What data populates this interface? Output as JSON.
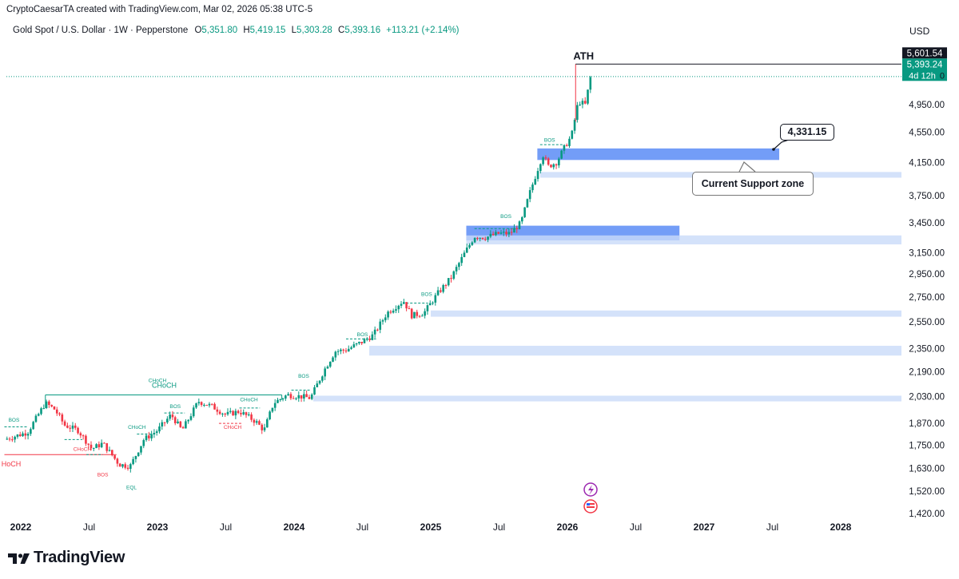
{
  "header": {
    "credit": "CryptoCaesarTA created with TradingView.com, Mar 02, 2026 05:38 UTC-5",
    "symbol": "Gold Spot / U.S. Dollar · 1W · Pepperstone",
    "open_label": "O",
    "open": "5,351.80",
    "high_label": "H",
    "high": "5,419.15",
    "low_label": "L",
    "low": "5,303.28",
    "close_label": "C",
    "close": "5,393.16",
    "change": "+113.21 (+2.14%)",
    "currency": "USD"
  },
  "colors": {
    "up": "#089981",
    "down": "#f23645",
    "zone": "#2962ff",
    "structure_green": "#089981",
    "structure_red": "#f23645",
    "text": "#131722"
  },
  "price_tags": {
    "ath": "5,601.54",
    "last": "5,393.24",
    "countdown": "4d 12h",
    "tail": "0"
  },
  "annotations": {
    "ath_label": "ATH",
    "support_value": "4,331.15",
    "support_label": "Current Support zone"
  },
  "brand": {
    "name": "TradingView"
  },
  "chart_data": {
    "type": "candlestick",
    "title": "Gold Spot / U.S. Dollar · 1W · Pepperstone",
    "y_scale": "log",
    "y_ticks": [
      {
        "value": 4950,
        "label": "4,950.00"
      },
      {
        "value": 4550,
        "label": "4,550.00"
      },
      {
        "value": 4150,
        "label": "4,150.00"
      },
      {
        "value": 3750,
        "label": "3,750.00"
      },
      {
        "value": 3450,
        "label": "3,450.00"
      },
      {
        "value": 3150,
        "label": "3,150.00"
      },
      {
        "value": 2950,
        "label": "2,950.00"
      },
      {
        "value": 2750,
        "label": "2,750.00"
      },
      {
        "value": 2550,
        "label": "2,550.00"
      },
      {
        "value": 2350,
        "label": "2,350.00"
      },
      {
        "value": 2190,
        "label": "2,190.00"
      },
      {
        "value": 2030,
        "label": "2,030.00"
      },
      {
        "value": 1870,
        "label": "1,870.00"
      },
      {
        "value": 1750,
        "label": "1,750.00"
      },
      {
        "value": 1630,
        "label": "1,630.00"
      },
      {
        "value": 1520,
        "label": "1,520.00"
      },
      {
        "value": 1420,
        "label": "1,420.00"
      }
    ],
    "x_ticks": [
      {
        "t": 2022.0,
        "label": "2022",
        "bold": true
      },
      {
        "t": 2022.5,
        "label": "Jul",
        "bold": false
      },
      {
        "t": 2023.0,
        "label": "2023",
        "bold": true
      },
      {
        "t": 2023.5,
        "label": "Jul",
        "bold": false
      },
      {
        "t": 2024.0,
        "label": "2024",
        "bold": true
      },
      {
        "t": 2024.5,
        "label": "Jul",
        "bold": false
      },
      {
        "t": 2025.0,
        "label": "2025",
        "bold": true
      },
      {
        "t": 2025.5,
        "label": "Jul",
        "bold": false
      },
      {
        "t": 2026.0,
        "label": "2026",
        "bold": true
      },
      {
        "t": 2026.5,
        "label": "Jul",
        "bold": false
      },
      {
        "t": 2027.0,
        "label": "2027",
        "bold": true
      },
      {
        "t": 2027.5,
        "label": "Jul",
        "bold": false
      },
      {
        "t": 2028.0,
        "label": "2028",
        "bold": true
      }
    ],
    "price_path": [
      [
        2021.88,
        1780
      ],
      [
        2022.05,
        1820
      ],
      [
        2022.18,
        1990
      ],
      [
        2022.25,
        1950
      ],
      [
        2022.32,
        1860
      ],
      [
        2022.42,
        1830
      ],
      [
        2022.52,
        1730
      ],
      [
        2022.6,
        1760
      ],
      [
        2022.72,
        1650
      ],
      [
        2022.8,
        1640
      ],
      [
        2022.9,
        1780
      ],
      [
        2023.0,
        1830
      ],
      [
        2023.1,
        1920
      ],
      [
        2023.18,
        1830
      ],
      [
        2023.3,
        2000
      ],
      [
        2023.4,
        1970
      ],
      [
        2023.5,
        1920
      ],
      [
        2023.6,
        1940
      ],
      [
        2023.72,
        1880
      ],
      [
        2023.78,
        1830
      ],
      [
        2023.85,
        1990
      ],
      [
        2023.95,
        2040
      ],
      [
        2024.05,
        2030
      ],
      [
        2024.12,
        2020
      ],
      [
        2024.22,
        2200
      ],
      [
        2024.3,
        2330
      ],
      [
        2024.38,
        2340
      ],
      [
        2024.5,
        2400
      ],
      [
        2024.58,
        2450
      ],
      [
        2024.68,
        2620
      ],
      [
        2024.8,
        2720
      ],
      [
        2024.86,
        2600
      ],
      [
        2024.95,
        2620
      ],
      [
        2025.05,
        2780
      ],
      [
        2025.15,
        2920
      ],
      [
        2025.25,
        3150
      ],
      [
        2025.32,
        3310
      ],
      [
        2025.4,
        3300
      ],
      [
        2025.5,
        3340
      ],
      [
        2025.58,
        3340
      ],
      [
        2025.66,
        3450
      ],
      [
        2025.72,
        3760
      ],
      [
        2025.78,
        4050
      ],
      [
        2025.82,
        4250
      ],
      [
        2025.86,
        4100
      ],
      [
        2025.92,
        4150
      ],
      [
        2025.98,
        4350
      ],
      [
        2026.03,
        4500
      ],
      [
        2026.08,
        5000
      ],
      [
        2026.13,
        4950
      ],
      [
        2026.17,
        5393
      ]
    ],
    "zones": [
      {
        "t0": 2025.78,
        "t1": 2027.55,
        "low": 4180,
        "high": 4330,
        "strength": "strong"
      },
      {
        "t0": 2025.8,
        "t1": 2028.45,
        "low": 3960,
        "high": 4030,
        "strength": "light"
      },
      {
        "t0": 2025.26,
        "t1": 2026.82,
        "low": 3270,
        "high": 3420,
        "strength": "strong"
      },
      {
        "t0": 2025.26,
        "t1": 2028.45,
        "low": 3230,
        "high": 3320,
        "strength": "light"
      },
      {
        "t0": 2025.0,
        "t1": 2028.45,
        "low": 2590,
        "high": 2640,
        "strength": "light"
      },
      {
        "t0": 2024.55,
        "t1": 2028.45,
        "low": 2300,
        "high": 2370,
        "strength": "light"
      },
      {
        "t0": 2024.14,
        "t1": 2028.45,
        "low": 2000,
        "high": 2035,
        "strength": "light"
      }
    ],
    "ath": {
      "value": 5601.54,
      "t0": 2026.06,
      "label": "ATH"
    },
    "last_price": 5393.24,
    "structure_labels": [
      {
        "text": "BOS",
        "t": 2021.95,
        "price": 1880,
        "color": "green"
      },
      {
        "text": "CHoCH",
        "t": 2022.45,
        "price": 1720,
        "color": "red"
      },
      {
        "text": "BOS",
        "t": 2022.6,
        "price": 1590,
        "color": "red"
      },
      {
        "text": "CHoCH",
        "t": 2022.85,
        "price": 1840,
        "color": "green"
      },
      {
        "text": "EQL",
        "t": 2022.81,
        "price": 1530,
        "color": "green"
      },
      {
        "text": "CHoCH",
        "t": 2023.0,
        "price": 2120,
        "color": "green"
      },
      {
        "text": "BOS",
        "t": 2023.13,
        "price": 1960,
        "color": "green"
      },
      {
        "text": "CHoCH",
        "t": 2023.55,
        "price": 1840,
        "color": "red"
      },
      {
        "text": "CHoCH",
        "t": 2023.67,
        "price": 2000,
        "color": "green"
      },
      {
        "text": "BOS",
        "t": 2024.07,
        "price": 2150,
        "color": "green"
      },
      {
        "text": "BOS",
        "t": 2024.5,
        "price": 2440,
        "color": "green"
      },
      {
        "text": "BOS",
        "t": 2024.97,
        "price": 2760,
        "color": "green"
      },
      {
        "text": "BOS",
        "t": 2025.55,
        "price": 3500,
        "color": "green"
      },
      {
        "text": "BOS",
        "t": 2025.87,
        "price": 4420,
        "color": "green"
      },
      {
        "text": "HoCH",
        "t": 2021.93,
        "price": 1640,
        "color": "red"
      }
    ],
    "structure_lines": [
      {
        "t0": 2022.18,
        "t1": 2023.91,
        "price": 2040,
        "color": "green",
        "dash": false
      },
      {
        "t0": 2021.88,
        "t1": 2022.7,
        "price": 1700,
        "color": "red",
        "dash": false
      },
      {
        "t0": 2021.88,
        "t1": 2022.05,
        "price": 1850,
        "color": "green",
        "dash": true
      },
      {
        "t0": 2022.32,
        "t1": 2022.45,
        "price": 1780,
        "color": "green",
        "dash": true
      },
      {
        "t0": 2022.48,
        "t1": 2022.6,
        "price": 1700,
        "color": "green",
        "dash": true
      },
      {
        "t0": 2022.85,
        "t1": 2022.98,
        "price": 1810,
        "color": "green",
        "dash": true
      },
      {
        "t0": 2023.05,
        "t1": 2023.2,
        "price": 1930,
        "color": "green",
        "dash": true
      },
      {
        "t0": 2023.45,
        "t1": 2023.62,
        "price": 1870,
        "color": "red",
        "dash": true
      },
      {
        "t0": 2023.6,
        "t1": 2023.75,
        "price": 1960,
        "color": "green",
        "dash": true
      },
      {
        "t0": 2023.98,
        "t1": 2024.12,
        "price": 2070,
        "color": "green",
        "dash": true
      },
      {
        "t0": 2024.38,
        "t1": 2024.6,
        "price": 2420,
        "color": "green",
        "dash": true
      },
      {
        "t0": 2024.82,
        "t1": 2024.98,
        "price": 2700,
        "color": "green",
        "dash": true
      },
      {
        "t0": 2025.32,
        "t1": 2025.62,
        "price": 3390,
        "color": "green",
        "dash": true
      },
      {
        "t0": 2025.8,
        "t1": 2025.98,
        "price": 4380,
        "color": "green",
        "dash": true
      }
    ]
  }
}
